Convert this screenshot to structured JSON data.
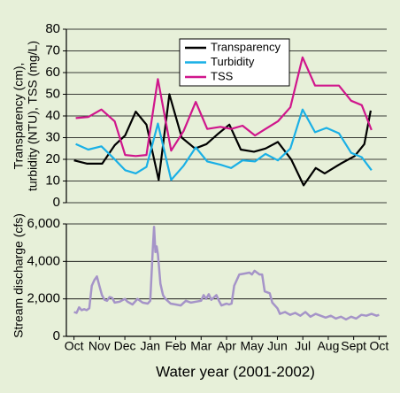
{
  "chart_data": [
    {
      "type": "line",
      "ylabel": [
        "Transparency (cm),",
        "turbidity (NTU), TSS (mg/L)"
      ],
      "xlim": [
        -0.3,
        12.3
      ],
      "ylim": [
        0,
        80
      ],
      "yticks": [
        0,
        10,
        20,
        30,
        40,
        50,
        60,
        70,
        80
      ],
      "grid": true,
      "legend": "top-center",
      "series": [
        {
          "name": "Transparency",
          "color": "#000000",
          "x": [
            0,
            0.52,
            1.11,
            1.6,
            2.01,
            2.43,
            2.85,
            3.33,
            3.75,
            4.24,
            4.76,
            5.21,
            5.69,
            6.11,
            6.56,
            7.08,
            7.53,
            8.02,
            8.54,
            9.03,
            9.51,
            9.86,
            10.49,
            11.04,
            11.42,
            11.67
          ],
          "values": [
            19.5,
            18,
            18,
            26.5,
            31,
            42,
            36,
            10.5,
            50,
            30,
            25,
            27,
            32,
            36,
            24.5,
            23.5,
            25,
            28,
            20,
            8,
            16,
            13.5,
            18,
            21.5,
            27,
            42.5
          ]
        },
        {
          "name": "Turbidity",
          "color": "#1ab0e6",
          "x": [
            0.07,
            0.56,
            1.08,
            1.6,
            2.01,
            2.43,
            2.85,
            3.3,
            3.82,
            4.31,
            4.79,
            5.24,
            5.76,
            6.18,
            6.63,
            7.12,
            7.53,
            8.02,
            8.51,
            8.99,
            9.48,
            9.93,
            10.42,
            10.9,
            11.32,
            11.7
          ],
          "values": [
            27,
            24.5,
            26,
            20,
            15,
            13.5,
            16.5,
            36.5,
            10.5,
            17,
            25.5,
            19,
            17.5,
            16,
            19.5,
            19,
            22.5,
            19.5,
            25,
            43,
            32.5,
            34.5,
            32,
            23,
            21,
            15
          ]
        },
        {
          "name": "TSS",
          "color": "#d0168c",
          "x": [
            0.07,
            0.56,
            1.08,
            1.6,
            2.01,
            2.43,
            2.85,
            3.3,
            3.82,
            4.31,
            4.79,
            5.24,
            5.76,
            6.18,
            6.63,
            7.12,
            7.53,
            8.02,
            8.51,
            8.99,
            9.48,
            9.93,
            10.42,
            10.9,
            11.32,
            11.7
          ],
          "values": [
            39,
            39.5,
            43,
            37.5,
            22,
            21.5,
            22,
            57,
            24,
            33,
            46.5,
            34,
            35,
            34,
            35.5,
            31,
            34,
            37.5,
            44,
            67,
            54,
            54,
            54,
            47,
            45,
            33.5
          ]
        }
      ]
    },
    {
      "type": "line",
      "ylabel": "Stream discharge (cfs)",
      "xlabel": "Water year (2001-2002)",
      "xlim": [
        -0.3,
        12.3
      ],
      "ylim": [
        0,
        6000
      ],
      "yticks": [
        0,
        {
          "value": 2000,
          "label": "2,000"
        },
        {
          "value": 4000,
          "label": "4,000"
        },
        {
          "value": 6000,
          "label": "6,000"
        }
      ],
      "grid": true,
      "xticks": [
        {
          "value": 0,
          "label": "Oct"
        },
        {
          "value": 1,
          "label": "Nov"
        },
        {
          "value": 2,
          "label": "Dec"
        },
        {
          "value": 3,
          "label": "Jan"
        },
        {
          "value": 4,
          "label": "Feb"
        },
        {
          "value": 5,
          "label": "Mar"
        },
        {
          "value": 6,
          "label": "Apr"
        },
        {
          "value": 7,
          "label": "May"
        },
        {
          "value": 8,
          "label": "Jun"
        },
        {
          "value": 9,
          "label": "Jul"
        },
        {
          "value": 10,
          "label": "Aug"
        },
        {
          "value": 11,
          "label": "Sept"
        },
        {
          "value": 12,
          "label": "Oct"
        }
      ],
      "series": [
        {
          "color": "#a594c8",
          "x": [
            0,
            0.1,
            0.2,
            0.3,
            0.4,
            0.5,
            0.6,
            0.7,
            0.8,
            0.9,
            1.0,
            1.1,
            1.2,
            1.3,
            1.4,
            1.5,
            1.6,
            1.8,
            2.0,
            2.1,
            2.3,
            2.5,
            2.7,
            2.9,
            3.0,
            3.1,
            3.15,
            3.2,
            3.25,
            3.3,
            3.4,
            3.5,
            3.6,
            3.8,
            4.0,
            4.2,
            4.4,
            4.6,
            4.8,
            5.0,
            5.1,
            5.2,
            5.3,
            5.4,
            5.6,
            5.7,
            5.8,
            6.0,
            6.1,
            6.2,
            6.3,
            6.5,
            6.7,
            6.9,
            7.0,
            7.1,
            7.3,
            7.4,
            7.5,
            7.7,
            7.8,
            8.0,
            8.1,
            8.3,
            8.5,
            8.7,
            8.9,
            9.1,
            9.3,
            9.5,
            9.7,
            9.9,
            10.1,
            10.3,
            10.5,
            10.7,
            10.9,
            11.1,
            11.3,
            11.5,
            11.7,
            11.9,
            12.0
          ],
          "values": [
            1300,
            1250,
            1550,
            1400,
            1450,
            1400,
            1500,
            2700,
            3000,
            3200,
            2700,
            2200,
            1950,
            1900,
            2100,
            2050,
            1800,
            1850,
            2000,
            1850,
            1700,
            2000,
            1800,
            1750,
            1900,
            4700,
            5850,
            4500,
            4800,
            4400,
            2800,
            2200,
            2000,
            1750,
            1700,
            1650,
            1900,
            1800,
            1850,
            1900,
            2200,
            2000,
            2250,
            1950,
            2200,
            1900,
            1650,
            1750,
            1700,
            1750,
            2700,
            3300,
            3350,
            3400,
            3300,
            3500,
            3300,
            3300,
            2400,
            2300,
            1800,
            1500,
            1200,
            1300,
            1150,
            1250,
            1100,
            1300,
            1050,
            1200,
            1100,
            1000,
            1100,
            950,
            1050,
            900,
            1050,
            950,
            1150,
            1100,
            1200,
            1100,
            1150
          ]
        }
      ]
    }
  ]
}
